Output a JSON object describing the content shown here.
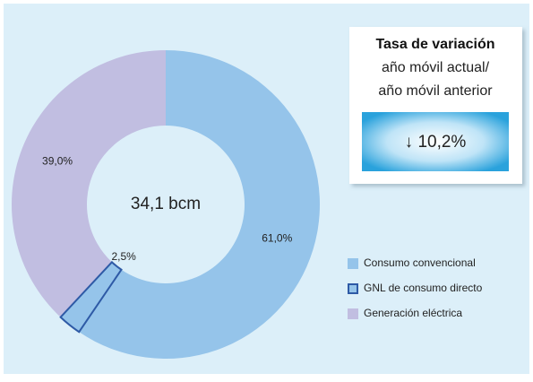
{
  "chart_data": {
    "type": "donut",
    "center_label": "34,1 bcm",
    "categories": [
      "Consumo convencional",
      "GNL de consumo directo",
      "Generación eléctrica"
    ],
    "values": [
      61.0,
      2.5,
      39.0
    ],
    "value_labels": [
      "61,0%",
      "2,5%",
      "39,0%"
    ],
    "colors": [
      "#95c4ea",
      "#95c4ea",
      "#c1bee1"
    ],
    "edge_colors": [
      null,
      "#2e5aa6",
      null
    ],
    "legend": "right",
    "info_box": {
      "title": "Tasa de variación",
      "line1": "año móvil actual/",
      "line2": "año móvil anterior",
      "value": "↓ 10,2%"
    }
  }
}
